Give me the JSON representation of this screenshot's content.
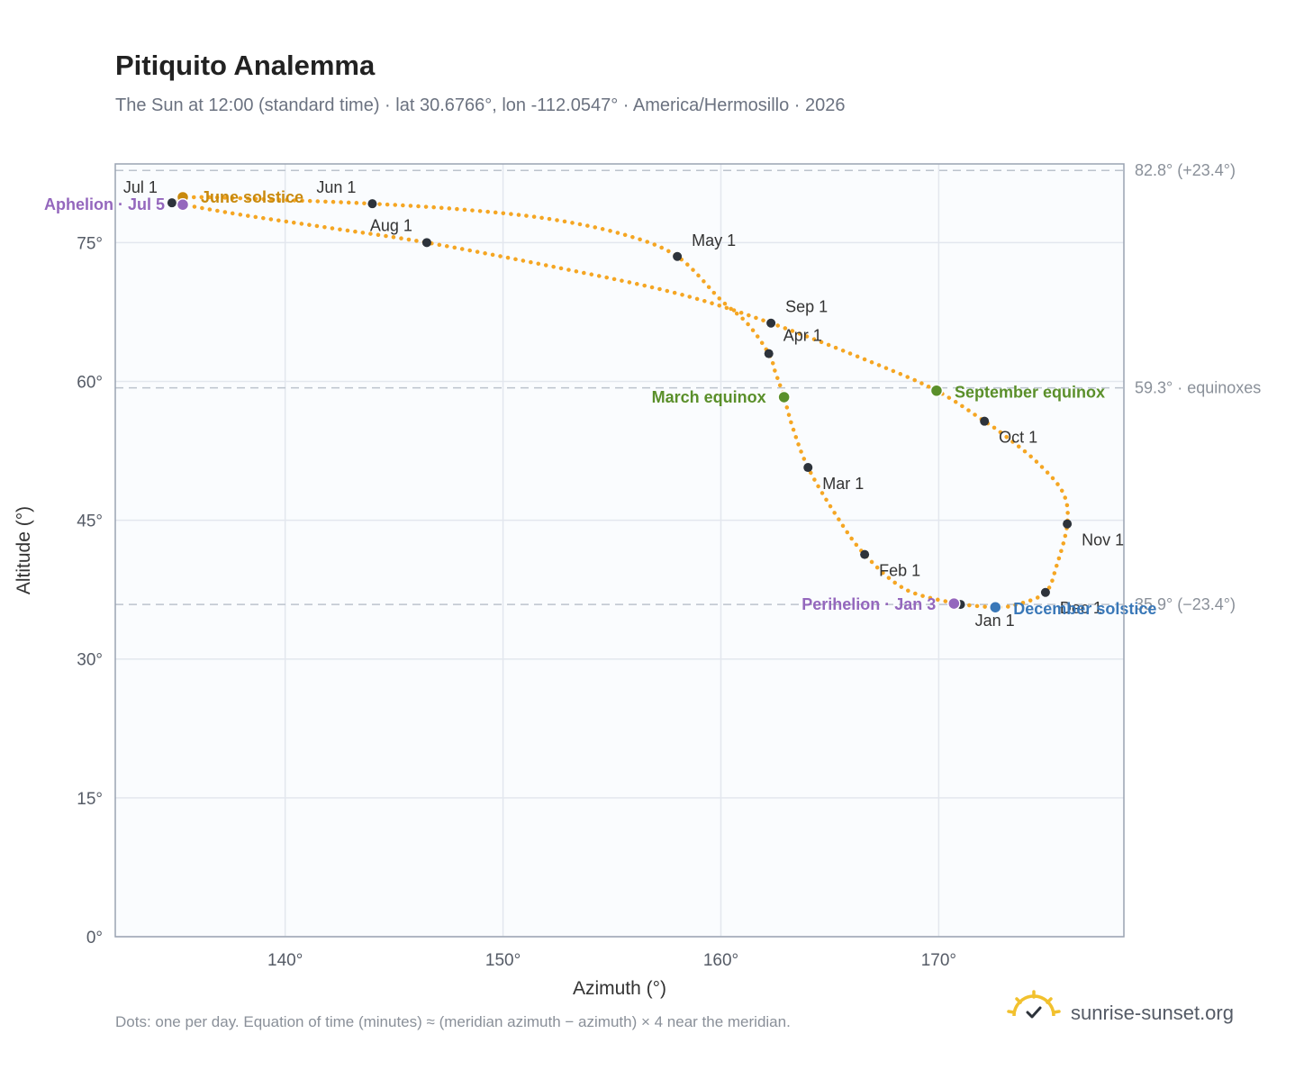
{
  "chart_data": {
    "type": "scatter",
    "title": "Pitiquito Analemma",
    "subtitle": "The Sun at 12:00 (standard time) · lat 30.6766°, lon -112.0547° · America/Hermosillo · 2026",
    "xlabel": "Azimuth (°)",
    "ylabel": "Altitude (°)",
    "xlim": [
      132.2,
      178.5
    ],
    "ylim": [
      0,
      83.5
    ],
    "x_ticks": [
      140,
      150,
      160,
      170
    ],
    "x_tick_labels": [
      "140°",
      "150°",
      "160°",
      "170°"
    ],
    "y_ticks": [
      0,
      15,
      30,
      45,
      60,
      75
    ],
    "y_tick_labels": [
      "0°",
      "15°",
      "30°",
      "45°",
      "60°",
      "75°"
    ],
    "grid": true,
    "series_color": "#f5a623",
    "month_marker_color": "#2d333b",
    "path": [
      [
        171.0,
        35.9
      ],
      [
        168.5,
        37.5
      ],
      [
        166.6,
        41.3
      ],
      [
        165.3,
        45.5
      ],
      [
        164.0,
        50.7
      ],
      [
        163.3,
        55.0
      ],
      [
        162.9,
        58.3
      ],
      [
        162.5,
        61.0
      ],
      [
        162.2,
        63.0
      ],
      [
        161.2,
        66.3
      ],
      [
        160.0,
        68.8
      ],
      [
        158.0,
        73.5
      ],
      [
        155.5,
        75.9
      ],
      [
        152.0,
        77.6
      ],
      [
        148.0,
        78.6
      ],
      [
        144.0,
        79.2
      ],
      [
        140.0,
        79.6
      ],
      [
        136.5,
        79.9
      ],
      [
        135.4,
        79.8
      ],
      [
        134.8,
        79.3
      ],
      [
        135.3,
        79.1
      ],
      [
        138.0,
        78.0
      ],
      [
        142.0,
        76.6
      ],
      [
        146.5,
        75.0
      ],
      [
        152.5,
        72.3
      ],
      [
        158.0,
        69.5
      ],
      [
        162.3,
        66.3
      ],
      [
        167.0,
        62.0
      ],
      [
        169.9,
        59.0
      ],
      [
        172.1,
        55.7
      ],
      [
        173.0,
        54.2
      ],
      [
        174.5,
        51.3
      ],
      [
        175.7,
        48.0
      ],
      [
        175.9,
        44.6
      ],
      [
        175.4,
        40.0
      ],
      [
        174.9,
        37.2
      ],
      [
        173.6,
        35.9
      ],
      [
        172.6,
        35.6
      ],
      [
        171.0,
        35.9
      ]
    ],
    "months": [
      {
        "label": "Jan 1",
        "az": 171.0,
        "alt": 35.9
      },
      {
        "label": "Feb 1",
        "az": 166.6,
        "alt": 41.3
      },
      {
        "label": "Mar 1",
        "az": 164.0,
        "alt": 50.7
      },
      {
        "label": "Apr 1",
        "az": 162.2,
        "alt": 63.0
      },
      {
        "label": "May 1",
        "az": 158.0,
        "alt": 73.5
      },
      {
        "label": "Jun 1",
        "az": 144.0,
        "alt": 79.2
      },
      {
        "label": "Jul 1",
        "az": 134.8,
        "alt": 79.3
      },
      {
        "label": "Aug 1",
        "az": 146.5,
        "alt": 75.0
      },
      {
        "label": "Sep 1",
        "az": 162.3,
        "alt": 66.3
      },
      {
        "label": "Oct 1",
        "az": 172.1,
        "alt": 55.7
      },
      {
        "label": "Nov 1",
        "az": 175.9,
        "alt": 44.6
      },
      {
        "label": "Dec 1",
        "az": 174.9,
        "alt": 37.2
      }
    ],
    "events": [
      {
        "label": "June solstice",
        "az": 135.3,
        "alt": 79.9,
        "color": "#c98a0e"
      },
      {
        "label": "Aphelion · Jul 5",
        "az": 135.3,
        "alt": 79.1,
        "color": "#9467bd"
      },
      {
        "label": "March equinox",
        "az": 162.9,
        "alt": 58.3,
        "color": "#5a8f2a"
      },
      {
        "label": "September equinox",
        "az": 169.9,
        "alt": 59.0,
        "color": "#5a8f2a"
      },
      {
        "label": "Perihelion · Jan 3",
        "az": 170.7,
        "alt": 36.0,
        "color": "#9467bd"
      },
      {
        "label": "December solstice",
        "az": 172.6,
        "alt": 35.6,
        "color": "#3a78b8"
      }
    ],
    "reference_lines": [
      {
        "alt": 82.8,
        "label": "82.8° (+23.4°)"
      },
      {
        "alt": 59.3,
        "label": "59.3° · equinoxes"
      },
      {
        "alt": 35.9,
        "label": "35.9° (−23.4°)"
      }
    ]
  },
  "footnote": "Dots: one per day. Equation of time (minutes) ≈ (meridian azimuth − azimuth) × 4 near the meridian.",
  "brand": {
    "name": "sunrise-sunset.org",
    "icon": "sun-check-icon"
  }
}
